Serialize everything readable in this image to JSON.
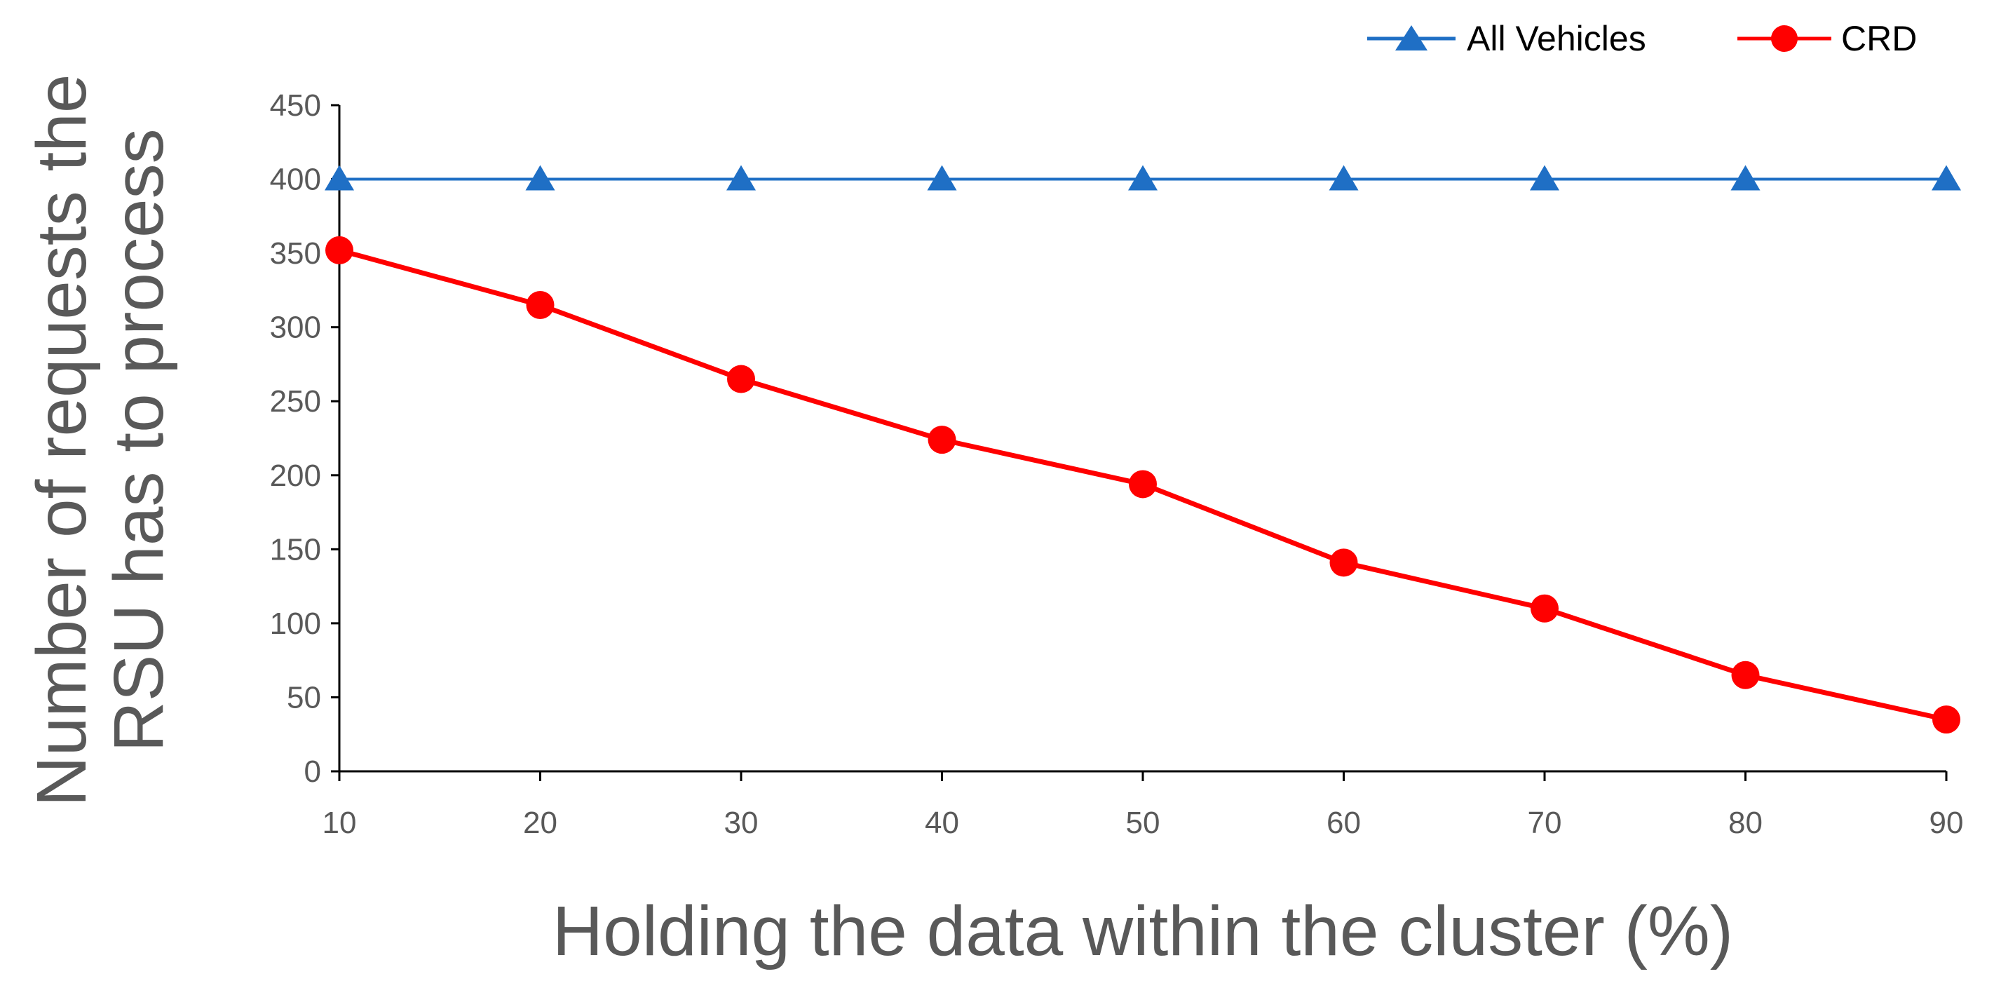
{
  "chart_data": {
    "type": "line",
    "x": [
      10,
      20,
      30,
      40,
      50,
      60,
      70,
      80,
      90
    ],
    "xlabel": "Holding the data within the cluster (%)",
    "ylabel_lines": [
      "Number of requests the",
      "RSU has to process"
    ],
    "ylim": [
      0,
      450
    ],
    "yticks": [
      0,
      50,
      100,
      150,
      200,
      250,
      300,
      350,
      400,
      450
    ],
    "xticks": [
      "10",
      "20",
      "30",
      "40",
      "50",
      "60",
      "70",
      "80",
      "90"
    ],
    "grid": false,
    "legend_position": "top-right",
    "series": [
      {
        "name": "All Vehicles",
        "marker": "triangle",
        "color": "#1F6FC5",
        "values": [
          400,
          400,
          400,
          400,
          400,
          400,
          400,
          400,
          400
        ]
      },
      {
        "name": "CRD",
        "marker": "circle",
        "color": "#FF0000",
        "values": [
          352,
          315,
          265,
          224,
          194,
          141,
          110,
          65,
          35
        ]
      }
    ]
  }
}
